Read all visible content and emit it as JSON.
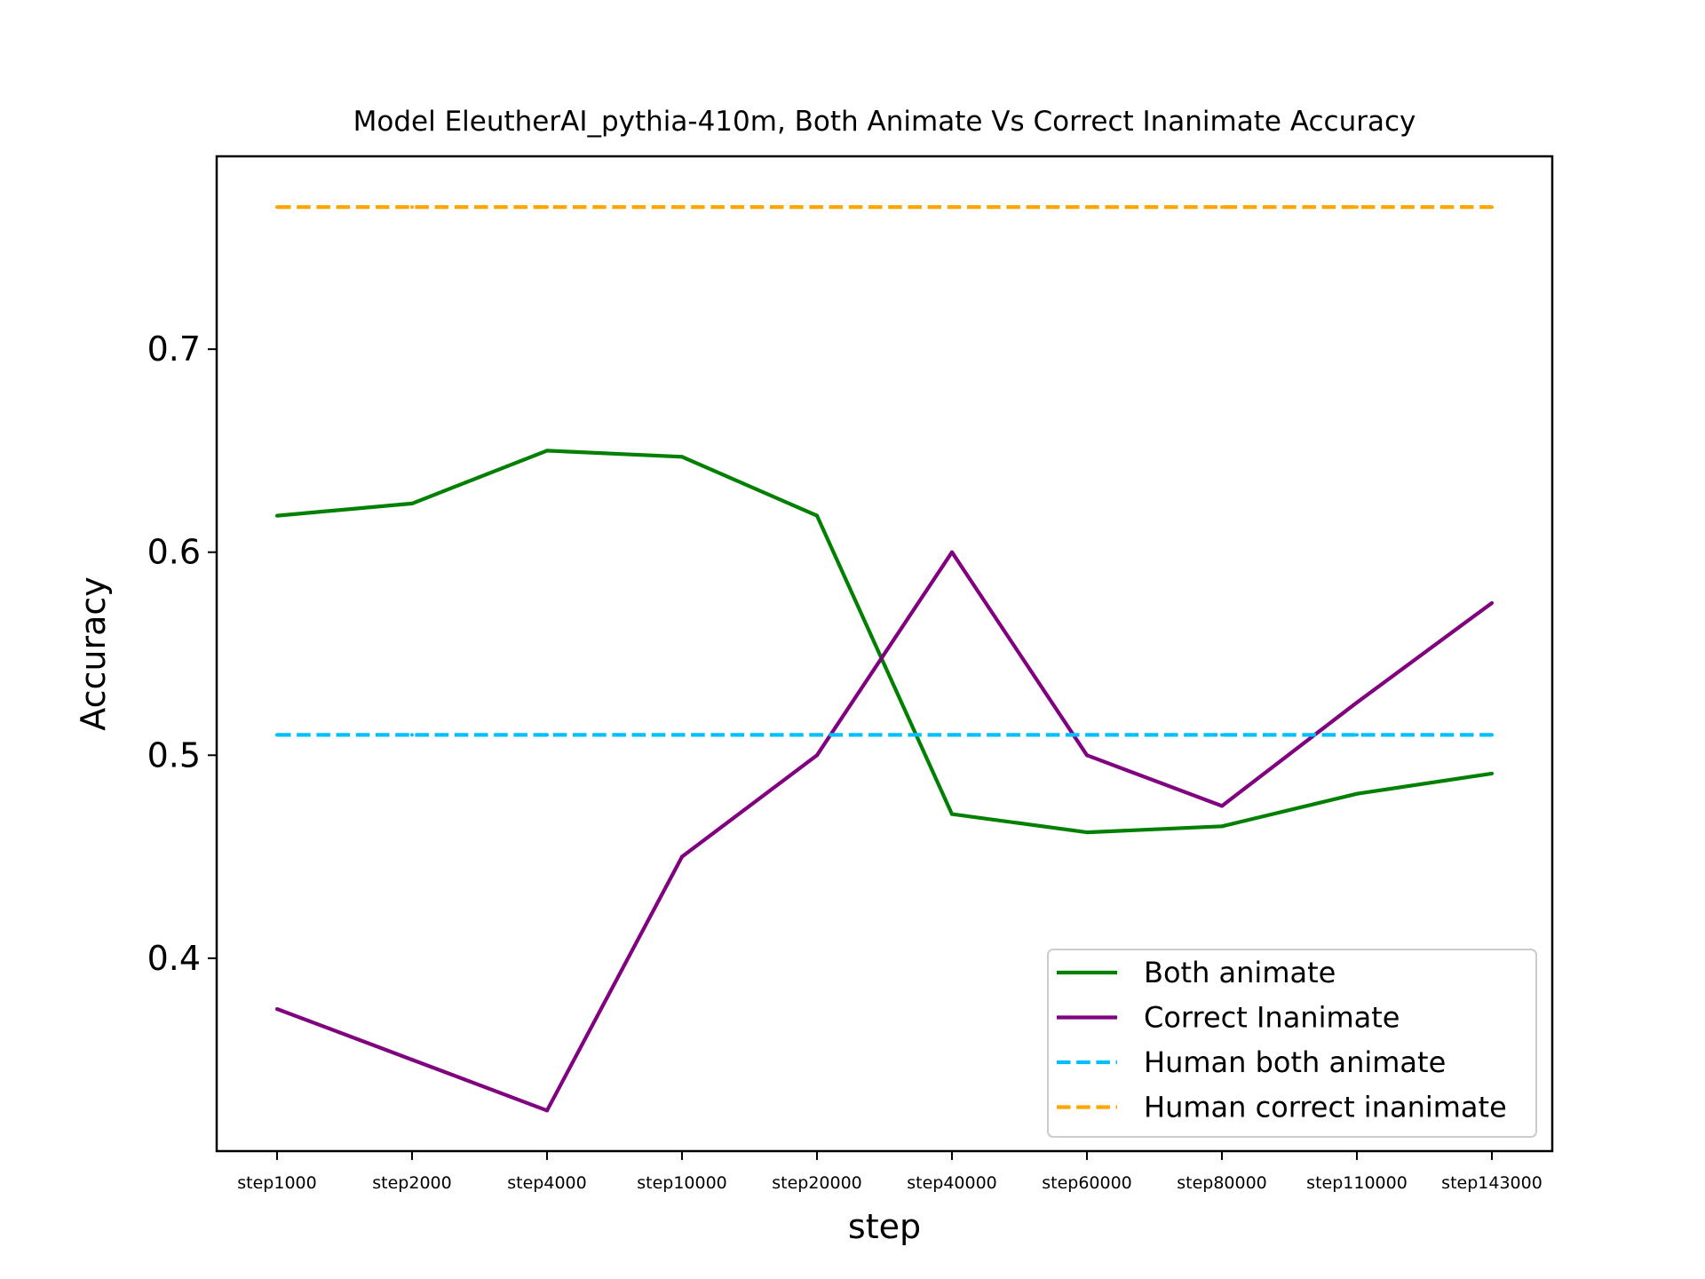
{
  "chart_data": {
    "type": "line",
    "title": "Model EleutherAI_pythia-410m, Both Animate Vs Correct Inanimate Accuracy",
    "xlabel": "step",
    "ylabel": "Accuracy",
    "categories": [
      "step1000",
      "step2000",
      "step4000",
      "step10000",
      "step20000",
      "step40000",
      "step60000",
      "step80000",
      "step110000",
      "step143000"
    ],
    "ylim": [
      0.305,
      0.795
    ],
    "yticks": [
      0.4,
      0.5,
      0.6,
      0.7
    ],
    "ytick_labels": [
      "0.4",
      "0.5",
      "0.6",
      "0.7"
    ],
    "grid": false,
    "legend_position": "lower-right",
    "series": [
      {
        "name": "Both animate",
        "color": "#008000",
        "style": "solid",
        "values": [
          0.618,
          0.624,
          0.65,
          0.647,
          0.618,
          0.471,
          0.462,
          0.465,
          0.481,
          0.491
        ]
      },
      {
        "name": "Correct Inanimate",
        "color": "#800080",
        "style": "solid",
        "values": [
          0.375,
          0.35,
          0.325,
          0.45,
          0.5,
          0.6,
          0.5,
          0.475,
          0.526,
          0.575
        ]
      },
      {
        "name": "Human both animate",
        "color": "#00bfff",
        "style": "dashed",
        "values": [
          0.51,
          0.51,
          0.51,
          0.51,
          0.51,
          0.51,
          0.51,
          0.51,
          0.51,
          0.51
        ]
      },
      {
        "name": "Human correct inanimate",
        "color": "#ffa500",
        "style": "dashed",
        "values": [
          0.77,
          0.77,
          0.77,
          0.77,
          0.77,
          0.77,
          0.77,
          0.77,
          0.77,
          0.77
        ]
      }
    ]
  }
}
